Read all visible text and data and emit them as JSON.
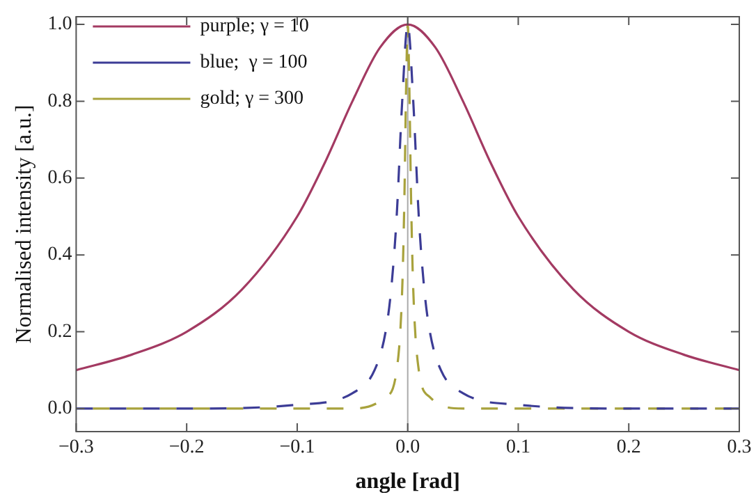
{
  "chart_data": {
    "type": "line",
    "xlabel": "angle [rad]",
    "ylabel": "Normalised intensity [a.u.]",
    "xlim": [
      -0.3,
      0.3
    ],
    "ylim": [
      -0.06,
      1.02
    ],
    "xticks": [
      {
        "value": -0.3,
        "label": "−0.3"
      },
      {
        "value": -0.2,
        "label": "−0.2"
      },
      {
        "value": -0.1,
        "label": "−0.1"
      },
      {
        "value": 0,
        "label": "0.0"
      },
      {
        "value": 0.1,
        "label": "0.1"
      },
      {
        "value": 0.2,
        "label": "0.2"
      },
      {
        "value": 0.3,
        "label": "0.3"
      }
    ],
    "yticks": [
      {
        "value": 0,
        "label": "0.0"
      },
      {
        "value": 0.2,
        "label": "0.2"
      },
      {
        "value": 0.4,
        "label": "0.4"
      },
      {
        "value": 0.6,
        "label": "0.6"
      },
      {
        "value": 0.8,
        "label": "0.8"
      },
      {
        "value": 1,
        "label": "1.0"
      }
    ],
    "grid": false,
    "legend": "top left",
    "marker": "none",
    "ref_lines": [
      {
        "axis": "x",
        "value": 0,
        "color": "#aaaaaa"
      }
    ],
    "series": [
      {
        "name": "purple; γ = 10",
        "color": "#a33a62",
        "line_style": "solid",
        "x": [
          -0.3,
          -0.25,
          -0.2,
          -0.15,
          -0.1,
          -0.075,
          -0.05,
          -0.025,
          0,
          0.025,
          0.05,
          0.075,
          0.1,
          0.15,
          0.2,
          0.25,
          0.3
        ],
        "values": [
          0.1,
          0.14,
          0.2,
          0.31,
          0.5,
          0.64,
          0.8,
          0.94,
          1,
          0.94,
          0.8,
          0.64,
          0.5,
          0.31,
          0.2,
          0.14,
          0.1
        ]
      },
      {
        "name": "blue;  γ = 100",
        "color": "#3c3c96",
        "line_style": "dashed",
        "x": [
          -0.3,
          -0.2,
          -0.1,
          -0.05,
          -0.03,
          -0.02,
          -0.015,
          -0.01,
          -0.005,
          0,
          0.005,
          0.01,
          0.015,
          0.02,
          0.03,
          0.05,
          0.1,
          0.2,
          0.3
        ],
        "values": [
          0,
          0,
          0.01,
          0.04,
          0.1,
          0.2,
          0.31,
          0.5,
          0.8,
          1,
          0.8,
          0.5,
          0.31,
          0.2,
          0.1,
          0.04,
          0.01,
          0,
          0
        ]
      },
      {
        "name": "gold; γ = 300",
        "color": "#a8a23c",
        "line_style": "dashed",
        "x": [
          -0.3,
          -0.1,
          -0.05,
          -0.02,
          -0.01,
          -0.005,
          -0.003,
          -0.0015,
          0,
          0.0015,
          0.003,
          0.005,
          0.01,
          0.02,
          0.05,
          0.1,
          0.3
        ],
        "values": [
          0,
          0,
          0,
          0.03,
          0.1,
          0.31,
          0.55,
          0.83,
          1,
          0.83,
          0.55,
          0.31,
          0.1,
          0.03,
          0,
          0,
          0
        ]
      }
    ]
  }
}
